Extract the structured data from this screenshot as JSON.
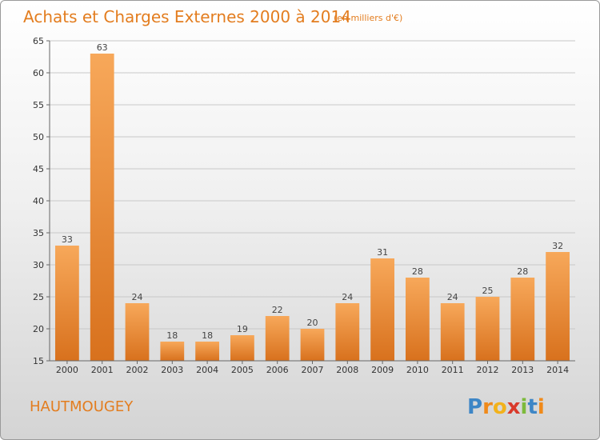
{
  "chart_data": {
    "type": "bar",
    "title": "Achats et Charges Externes 2000 à 2014",
    "subtitle": "(en milliers d'€)",
    "categories": [
      "2000",
      "2001",
      "2002",
      "2003",
      "2004",
      "2005",
      "2006",
      "2007",
      "2008",
      "2009",
      "2010",
      "2011",
      "2012",
      "2013",
      "2014"
    ],
    "values": [
      33,
      63,
      24,
      18,
      18,
      19,
      22,
      20,
      24,
      31,
      28,
      24,
      25,
      28,
      32
    ],
    "ylim": [
      15,
      65
    ],
    "yticks": [
      15,
      20,
      25,
      30,
      35,
      40,
      45,
      50,
      55,
      60,
      65
    ],
    "grid": true,
    "bar_color": "#f0903a",
    "legend": "none"
  },
  "footer": {
    "town": "HAUTMOUGEY",
    "logo": {
      "letters": [
        "P",
        "r",
        "o",
        "x",
        "i",
        "t",
        "i"
      ],
      "colors": [
        "#3d86c6",
        "#f08a1a",
        "#f2b21b",
        "#d93a2b",
        "#7dba3c",
        "#3d86c6",
        "#f08a1a"
      ]
    }
  }
}
